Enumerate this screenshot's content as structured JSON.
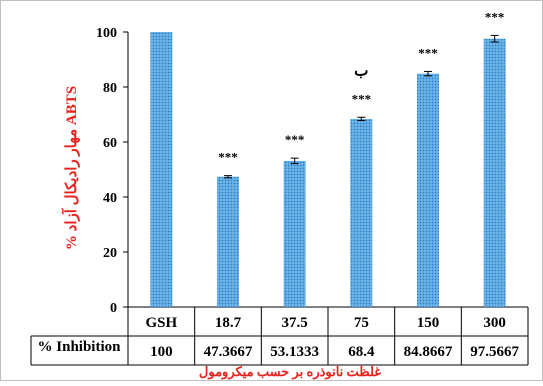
{
  "chart_data": {
    "type": "bar",
    "categories": [
      "GSH",
      "18.7",
      "37.5",
      "75",
      "150",
      "300"
    ],
    "values": [
      100,
      47.3667,
      53.1333,
      68.4,
      84.8667,
      97.5667
    ],
    "error": [
      0,
      0.4,
      1.0,
      0.6,
      0.8,
      1.2
    ],
    "significance": [
      "",
      "***",
      "***",
      "***",
      "***",
      "***"
    ],
    "extra_annotation": {
      "category_index": 3,
      "text": "ب"
    },
    "ylim": [
      0,
      100
    ],
    "yticks": [
      0,
      20,
      40,
      60,
      80,
      100
    ],
    "ylabel": "% مهار رادیکال آزاد ABTS",
    "xlabel": "غلظت نانوذره بر حسب میکرومول",
    "table": {
      "row_label": "% Inhibition",
      "values": [
        "100",
        "47.3667",
        "53.1333",
        "68.4",
        "84.8667",
        "97.5667"
      ]
    },
    "bar_color": "#4a9fdc",
    "axis_label_color": "#e8221c",
    "grid": false,
    "legend": "none"
  }
}
